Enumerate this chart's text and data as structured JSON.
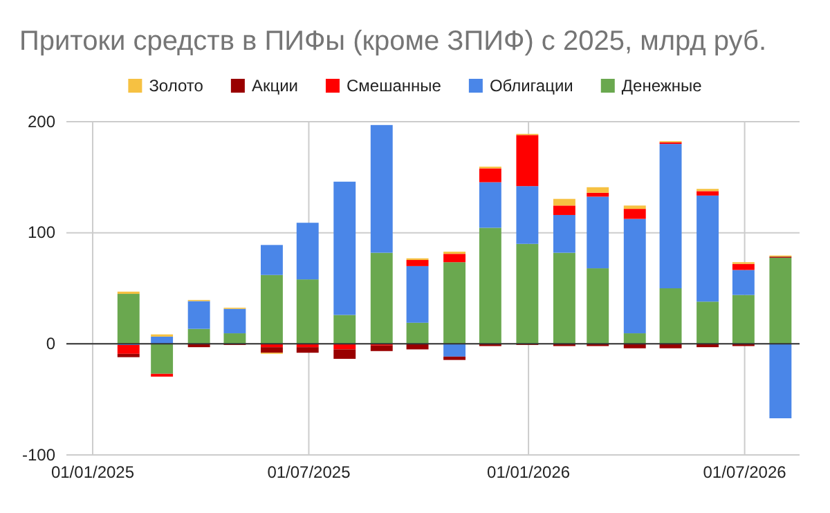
{
  "chart_data": {
    "type": "bar",
    "stacked": true,
    "title": "Притоки средств в ПИФы (кроме ЗПИФ) с 2025, млрд руб.",
    "x": [
      "2025-01-31",
      "2025-02-28",
      "2025-03-31",
      "2025-04-30",
      "2025-05-31",
      "2025-06-30",
      "2025-07-31",
      "2025-08-31",
      "2025-09-30",
      "2025-10-31",
      "2025-11-30",
      "2025-12-31",
      "2026-01-31",
      "2026-02-28",
      "2026-03-31",
      "2026-04-30",
      "2026-05-31",
      "2026-06-30",
      "2026-07-31"
    ],
    "series": [
      {
        "name": "Денежные",
        "color": "#6aa84f",
        "values": [
          45,
          -27,
          13.5,
          9.5,
          62,
          58,
          26,
          82,
          19,
          73.5,
          104.5,
          90,
          82,
          68,
          9.5,
          50,
          38,
          44,
          77.5
        ]
      },
      {
        "name": "Облигации",
        "color": "#4a86e8",
        "values": [
          -1,
          6.5,
          25,
          22,
          27,
          51,
          120,
          115,
          51,
          -11.5,
          41,
          52,
          34,
          64.5,
          103,
          130,
          95.5,
          22.5,
          -67
        ]
      },
      {
        "name": "Смешанные",
        "color": "#ff0000",
        "values": [
          -8,
          -2.5,
          null,
          null,
          -3,
          -3,
          -5,
          -1.5,
          5.5,
          7.5,
          12.5,
          46,
          8.5,
          3.5,
          9,
          1.5,
          4,
          5.5,
          null
        ]
      },
      {
        "name": "Акции",
        "color": "#990000",
        "values": [
          -3,
          null,
          -3,
          -1,
          -5,
          -5,
          -8.5,
          -5,
          -5,
          -3,
          -2,
          -1,
          -2,
          -2,
          -4,
          -4,
          -3,
          -2,
          1
        ]
      },
      {
        "name": "Золото",
        "color": "#f6c142",
        "values": [
          2,
          2,
          1,
          1,
          -1,
          null,
          null,
          null,
          1.5,
          2,
          1.5,
          1,
          6,
          5,
          3,
          1,
          2,
          1.5,
          1
        ]
      }
    ],
    "xlim": [
      "2024-12-10",
      "2026-08-16"
    ],
    "xticks": [
      {
        "value": "2025-01-01",
        "label": "01/01/2025"
      },
      {
        "value": "2025-07-01",
        "label": "01/07/2025"
      },
      {
        "value": "2026-01-01",
        "label": "01/01/2026"
      },
      {
        "value": "2026-07-01",
        "label": "01/07/2026"
      }
    ],
    "ylim": [
      -100,
      200
    ],
    "yticks": [
      -100,
      0,
      100,
      200
    ],
    "grid": true,
    "legend": "top"
  }
}
